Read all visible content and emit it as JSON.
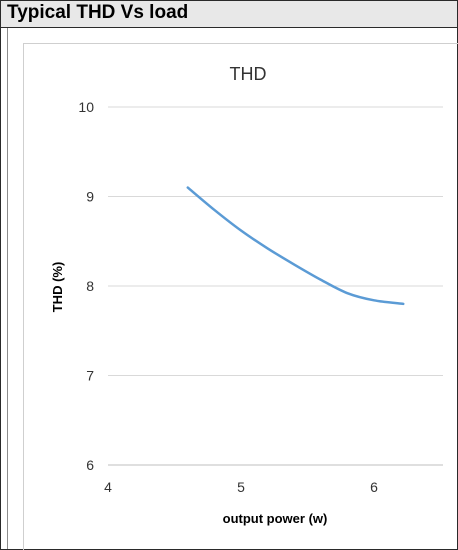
{
  "header": {
    "title": "Typical THD Vs load"
  },
  "chart_data": {
    "type": "line",
    "title": "THD",
    "xlabel": "output power (w)",
    "ylabel": "THD (%)",
    "xlim": [
      4,
      6.5
    ],
    "ylim": [
      6,
      10
    ],
    "x_ticks": [
      "4",
      "5",
      "6"
    ],
    "y_ticks": [
      "10",
      "9",
      "8",
      "7",
      "6"
    ],
    "grid": "horizontal",
    "series": [
      {
        "color": "#5b9bd5",
        "x": [
          4.6,
          4.8,
          5.0,
          5.2,
          5.4,
          5.6,
          5.8,
          6.0,
          6.22
        ],
        "y": [
          9.1,
          8.85,
          8.62,
          8.42,
          8.24,
          8.07,
          7.92,
          7.84,
          7.8
        ]
      }
    ]
  }
}
